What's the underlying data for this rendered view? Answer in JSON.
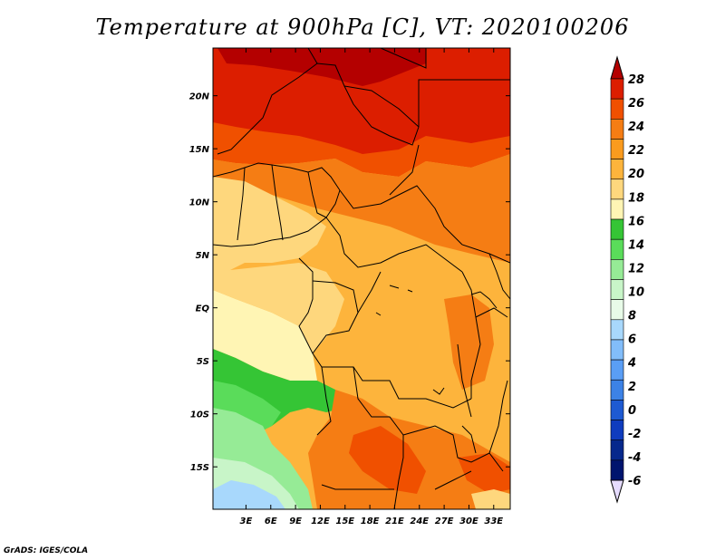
{
  "title": "Temperature at 900hPa [C], VT: 2020100206",
  "credit": "GrADS: IGES/COLA",
  "map": {
    "lon_range": [
      -1,
      35
    ],
    "lat_range": [
      -19,
      24.5
    ],
    "x_ticks": [
      "3E",
      "6E",
      "9E",
      "12E",
      "15E",
      "18E",
      "21E",
      "24E",
      "27E",
      "30E",
      "33E"
    ],
    "x_tick_values": [
      3,
      6,
      9,
      12,
      15,
      18,
      21,
      24,
      27,
      30,
      33
    ],
    "y_ticks": [
      "20N",
      "15N",
      "10N",
      "5N",
      "EQ",
      "5S",
      "10S",
      "15S"
    ],
    "y_tick_values": [
      20,
      15,
      10,
      5,
      0,
      -5,
      -10,
      -15
    ]
  },
  "colorbar": {
    "labels": [
      "28",
      "26",
      "24",
      "22",
      "20",
      "18",
      "16",
      "14",
      "12",
      "10",
      "8",
      "6",
      "4",
      "2",
      "0",
      "-2",
      "-4",
      "-6"
    ],
    "colors": [
      "#b40000",
      "#dc1e00",
      "#f05000",
      "#f57d14",
      "#fa9b1e",
      "#fdb43c",
      "#fed77d",
      "#fff5b4",
      "#35c535",
      "#5adc5a",
      "#96eb96",
      "#c8f5c8",
      "#e8fbe8",
      "#a8d8fc",
      "#82bdfa",
      "#5a9ef5",
      "#3c82e6",
      "#1e5ad2",
      "#0f3cbe",
      "#06288c",
      "#00146e",
      "#e6dcff"
    ]
  }
}
